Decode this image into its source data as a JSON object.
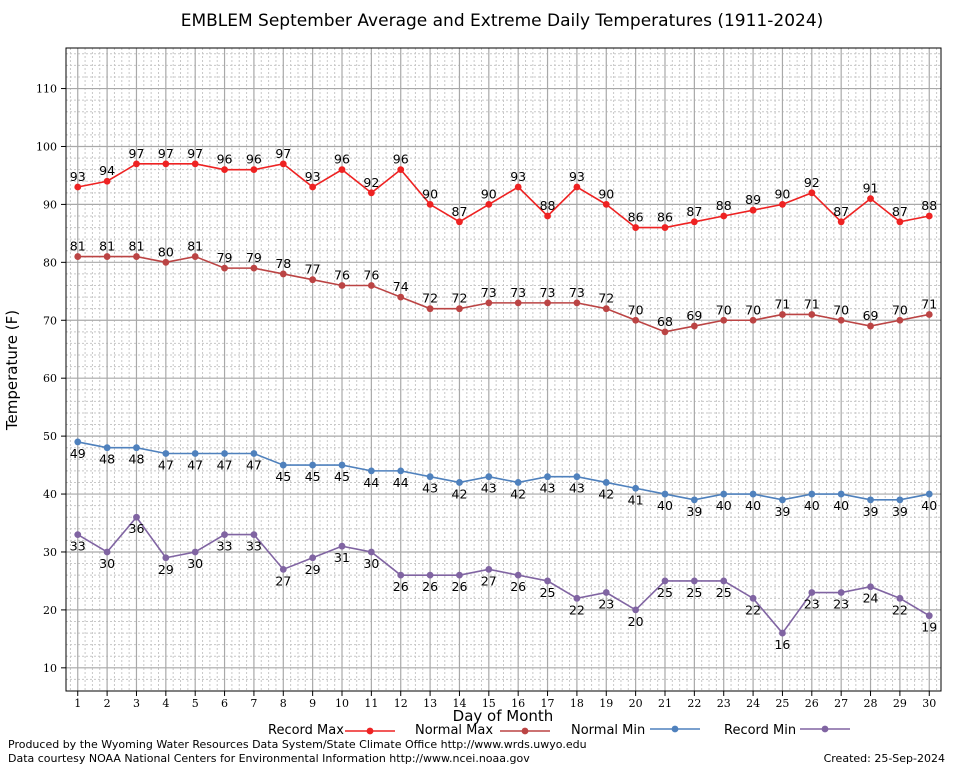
{
  "chart_data": {
    "type": "line",
    "title": "EMBLEM September Average and Extreme Daily Temperatures (1911-2024)",
    "xlabel": "Day of Month",
    "ylabel": "Temperature (F)",
    "x": [
      1,
      2,
      3,
      4,
      5,
      6,
      7,
      8,
      9,
      10,
      11,
      12,
      13,
      14,
      15,
      16,
      17,
      18,
      19,
      20,
      21,
      22,
      23,
      24,
      25,
      26,
      27,
      28,
      29,
      30
    ],
    "xlim": [
      0.6,
      30.4
    ],
    "ylim": [
      6,
      117
    ],
    "yticks": [
      10,
      20,
      30,
      40,
      50,
      60,
      70,
      80,
      90,
      100,
      110
    ],
    "grid": true,
    "legend_position": "bottom",
    "series": [
      {
        "name": "Record Max",
        "color": "#ee2222",
        "label_position": "above",
        "values": [
          93,
          94,
          97,
          97,
          97,
          96,
          96,
          97,
          93,
          96,
          92,
          96,
          90,
          87,
          90,
          93,
          88,
          93,
          90,
          86,
          86,
          87,
          88,
          89,
          90,
          92,
          87,
          91,
          87,
          88
        ]
      },
      {
        "name": "Normal Max",
        "color": "#bb4444",
        "label_position": "above",
        "values": [
          81,
          81,
          81,
          80,
          81,
          79,
          79,
          78,
          77,
          76,
          76,
          74,
          72,
          72,
          73,
          73,
          73,
          73,
          72,
          70,
          68,
          69,
          70,
          70,
          71,
          71,
          70,
          69,
          70,
          71
        ]
      },
      {
        "name": "Normal Min",
        "color": "#4f81bd",
        "label_position": "below",
        "values": [
          49,
          48,
          48,
          47,
          47,
          47,
          47,
          45,
          45,
          45,
          44,
          44,
          43,
          42,
          43,
          42,
          43,
          43,
          42,
          41,
          40,
          39,
          40,
          40,
          39,
          40,
          40,
          39,
          39,
          40
        ]
      },
      {
        "name": "Record Min",
        "color": "#8064a2",
        "label_position": "below",
        "values": [
          33,
          30,
          36,
          29,
          30,
          33,
          33,
          27,
          29,
          31,
          30,
          26,
          26,
          26,
          27,
          26,
          25,
          22,
          23,
          20,
          25,
          25,
          25,
          22,
          16,
          23,
          23,
          24,
          22,
          19
        ]
      }
    ]
  },
  "footer": {
    "credit_line_1": "Produced by the Wyoming Water Resources Data System/State Climate Office http://www.wrds.uwyo.edu",
    "credit_line_2": "Data courtesy NOAA National Centers for Environmental Information http://www.ncei.noaa.gov",
    "created": "Created:  25-Sep-2024"
  }
}
